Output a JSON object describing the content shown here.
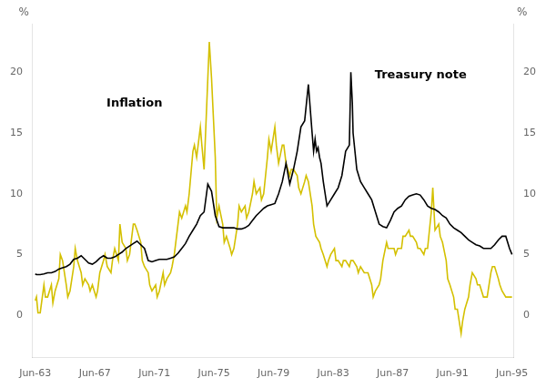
{
  "chart_data": {
    "type": "line",
    "ylabel": "%",
    "y2label": "%",
    "xlim": [
      1963.25,
      1995.5
    ],
    "xticks": [
      {
        "value": 1963.417,
        "label": "Jun-63"
      },
      {
        "value": 1967.417,
        "label": "Jun-67"
      },
      {
        "value": 1971.417,
        "label": "Jun-71"
      },
      {
        "value": 1975.417,
        "label": "Jun-75"
      },
      {
        "value": 1979.417,
        "label": "Jun-79"
      },
      {
        "value": 1983.417,
        "label": "Jun-83"
      },
      {
        "value": 1987.417,
        "label": "Jun-87"
      },
      {
        "value": 1991.417,
        "label": "Jun-91"
      },
      {
        "value": 1995.417,
        "label": "Jun-95"
      }
    ],
    "ylim": [
      -3.5,
      24
    ],
    "yticks": [
      0,
      5,
      10,
      15,
      20
    ],
    "y2lim": [
      -3.5,
      24
    ],
    "y2ticks": [
      0,
      5,
      10,
      15,
      20
    ],
    "grid": false,
    "annotations": [
      {
        "text": "Inflation",
        "x": 1968.2,
        "y": 17.2
      },
      {
        "text": "Treasury note",
        "x": 1986.2,
        "y": 19.5
      }
    ],
    "series": [
      {
        "color": "#d4c000",
        "x": [
          1963.417,
          1963.5,
          1963.6,
          1963.75,
          1964.0,
          1964.1,
          1964.2,
          1964.25,
          1964.5,
          1964.6,
          1964.75,
          1965.0,
          1965.1,
          1965.25,
          1965.5,
          1965.6,
          1965.75,
          1966.0,
          1966.1,
          1966.25,
          1966.5,
          1966.6,
          1966.75,
          1967.0,
          1967.1,
          1967.25,
          1967.5,
          1967.6,
          1967.75,
          1968.0,
          1968.1,
          1968.25,
          1968.5,
          1968.6,
          1968.75,
          1969.0,
          1969.1,
          1969.25,
          1969.5,
          1969.6,
          1969.75,
          1970.0,
          1970.1,
          1970.25,
          1970.5,
          1970.6,
          1970.75,
          1971.0,
          1971.1,
          1971.25,
          1971.5,
          1971.6,
          1971.75,
          1972.0,
          1972.1,
          1972.25,
          1972.5,
          1972.6,
          1972.75,
          1973.0,
          1973.1,
          1973.25,
          1973.5,
          1973.6,
          1973.75,
          1974.0,
          1974.1,
          1974.25,
          1974.5,
          1974.6,
          1974.75,
          1975.0,
          1975.1,
          1975.25,
          1975.5,
          1975.6,
          1975.75,
          1976.0,
          1976.1,
          1976.25,
          1976.5,
          1976.6,
          1976.75,
          1977.0,
          1977.1,
          1977.25,
          1977.5,
          1977.6,
          1977.75,
          1978.0,
          1978.1,
          1978.25,
          1978.5,
          1978.6,
          1978.75,
          1979.0,
          1979.1,
          1979.25,
          1979.5,
          1979.6,
          1979.75,
          1980.0,
          1980.1,
          1980.25,
          1980.5,
          1980.6,
          1980.75,
          1981.0,
          1981.1,
          1981.25,
          1981.5,
          1981.6,
          1981.75,
          1982.0,
          1982.1,
          1982.25,
          1982.5,
          1982.6,
          1982.75,
          1983.0,
          1983.1,
          1983.25,
          1983.5,
          1983.6,
          1983.75,
          1984.0,
          1984.1,
          1984.25,
          1984.5,
          1984.6,
          1984.75,
          1985.0,
          1985.1,
          1985.25,
          1985.5,
          1985.6,
          1985.75,
          1986.0,
          1986.1,
          1986.25,
          1986.5,
          1986.6,
          1986.75,
          1987.0,
          1987.1,
          1987.25,
          1987.5,
          1987.6,
          1987.75,
          1988.0,
          1988.1,
          1988.25,
          1988.5,
          1988.6,
          1988.75,
          1989.0,
          1989.1,
          1989.25,
          1989.5,
          1989.6,
          1989.75,
          1990.0,
          1990.1,
          1990.25,
          1990.5,
          1990.6,
          1990.75,
          1991.0,
          1991.1,
          1991.25,
          1991.5,
          1991.6,
          1991.75,
          1992.0,
          1992.1,
          1992.25,
          1992.5,
          1992.6,
          1992.75,
          1993.0,
          1993.1,
          1993.25,
          1993.5,
          1993.6,
          1993.75,
          1994.0,
          1994.1,
          1994.25,
          1994.5,
          1994.6,
          1994.75,
          1995.0,
          1995.25,
          1995.417
        ],
        "values": [
          1.2,
          1.5,
          0.2,
          0.2,
          2.5,
          1.5,
          1.5,
          1.5,
          2.5,
          1.0,
          2.0,
          3.0,
          5.0,
          4.5,
          2.5,
          1.5,
          2.0,
          4.0,
          5.5,
          4.5,
          3.5,
          2.5,
          3.0,
          2.5,
          2.0,
          2.5,
          1.5,
          2.0,
          3.5,
          4.5,
          5.0,
          4.0,
          3.5,
          4.5,
          5.5,
          4.5,
          7.5,
          6.0,
          5.5,
          4.5,
          5.0,
          7.5,
          7.5,
          7.0,
          6.0,
          4.5,
          4.0,
          3.5,
          2.5,
          2.0,
          2.5,
          1.5,
          2.0,
          3.5,
          2.5,
          3.0,
          3.5,
          4.0,
          5.0,
          7.5,
          8.5,
          8.0,
          9.0,
          8.5,
          10.0,
          13.5,
          14.0,
          13.0,
          15.5,
          14.0,
          12.0,
          19.5,
          22.5,
          19.5,
          13.0,
          8.0,
          9.0,
          7.5,
          6.0,
          6.5,
          5.5,
          5.0,
          5.5,
          7.5,
          9.0,
          8.5,
          9.0,
          8.0,
          8.5,
          10.0,
          11.0,
          10.0,
          10.5,
          9.5,
          10.0,
          13.0,
          14.5,
          13.5,
          15.5,
          14.0,
          12.5,
          14.0,
          14.0,
          12.5,
          11.5,
          12.0,
          12.0,
          11.5,
          10.5,
          10.0,
          11.0,
          11.5,
          11.0,
          9.0,
          7.5,
          6.5,
          6.0,
          5.5,
          5.0,
          4.0,
          4.5,
          5.0,
          5.5,
          4.5,
          4.5,
          4.0,
          4.5,
          4.5,
          4.0,
          4.5,
          4.5,
          4.0,
          3.5,
          4.0,
          3.5,
          3.5,
          3.5,
          2.5,
          1.5,
          2.0,
          2.5,
          3.0,
          4.5,
          6.0,
          5.5,
          5.5,
          5.5,
          5.0,
          5.5,
          5.5,
          6.5,
          6.5,
          7.0,
          6.5,
          6.5,
          6.0,
          5.5,
          5.5,
          5.0,
          5.5,
          5.5,
          8.5,
          10.5,
          7.0,
          7.5,
          6.5,
          6.0,
          4.5,
          3.0,
          2.5,
          1.5,
          0.5,
          0.5,
          -1.5,
          -0.5,
          0.5,
          1.5,
          2.5,
          3.5,
          3.0,
          2.5,
          2.5,
          1.5,
          1.5,
          1.5,
          3.5,
          4.0,
          4.0,
          3.0,
          2.5,
          2.0,
          1.5,
          1.5,
          1.5
        ]
      },
      {
        "color": "#000000",
        "x": [
          1963.417,
          1963.5,
          1963.75,
          1964.0,
          1964.25,
          1964.5,
          1964.75,
          1965.0,
          1965.25,
          1965.5,
          1965.75,
          1966.0,
          1966.25,
          1966.5,
          1966.75,
          1967.0,
          1967.25,
          1967.5,
          1967.75,
          1968.0,
          1968.25,
          1968.5,
          1968.75,
          1969.0,
          1969.25,
          1969.5,
          1969.75,
          1970.0,
          1970.25,
          1970.5,
          1970.75,
          1971.0,
          1971.25,
          1971.5,
          1971.75,
          1972.0,
          1972.25,
          1972.5,
          1972.75,
          1973.0,
          1973.25,
          1973.5,
          1973.75,
          1974.0,
          1974.25,
          1974.5,
          1974.75,
          1975.0,
          1975.25,
          1975.5,
          1975.75,
          1976.0,
          1976.25,
          1976.5,
          1976.75,
          1977.0,
          1977.25,
          1977.5,
          1977.75,
          1978.0,
          1978.25,
          1978.5,
          1978.75,
          1979.0,
          1979.25,
          1979.5,
          1979.75,
          1980.0,
          1980.25,
          1980.5,
          1980.75,
          1981.0,
          1981.25,
          1981.5,
          1981.75,
          1982.0,
          1982.1,
          1982.2,
          1982.3,
          1982.4,
          1982.5,
          1982.6,
          1982.75,
          1983.0,
          1983.25,
          1983.5,
          1983.75,
          1984.0,
          1984.25,
          1984.5,
          1984.6,
          1984.7,
          1984.75,
          1985.0,
          1985.25,
          1985.5,
          1985.75,
          1986.0,
          1986.25,
          1986.5,
          1986.75,
          1987.0,
          1987.25,
          1987.5,
          1987.75,
          1988.0,
          1988.25,
          1988.5,
          1988.75,
          1989.0,
          1989.25,
          1989.5,
          1989.75,
          1990.0,
          1990.25,
          1990.5,
          1990.75,
          1991.0,
          1991.25,
          1991.5,
          1991.75,
          1992.0,
          1992.25,
          1992.5,
          1992.75,
          1993.0,
          1993.25,
          1993.5,
          1993.75,
          1994.0,
          1994.25,
          1994.5,
          1994.75,
          1995.0,
          1995.25,
          1995.417
        ],
        "values": [
          3.4,
          3.35,
          3.35,
          3.4,
          3.5,
          3.5,
          3.6,
          3.8,
          3.9,
          4.0,
          4.2,
          4.6,
          4.7,
          4.9,
          4.6,
          4.3,
          4.2,
          4.4,
          4.7,
          4.9,
          4.7,
          4.7,
          4.8,
          5.0,
          5.2,
          5.5,
          5.7,
          5.9,
          6.1,
          5.8,
          5.5,
          4.5,
          4.4,
          4.5,
          4.6,
          4.6,
          4.6,
          4.7,
          4.8,
          5.1,
          5.5,
          5.9,
          6.5,
          7.0,
          7.5,
          8.2,
          8.5,
          10.8,
          10.2,
          8.2,
          7.3,
          7.2,
          7.2,
          7.2,
          7.2,
          7.1,
          7.1,
          7.2,
          7.4,
          7.8,
          8.2,
          8.5,
          8.8,
          9.0,
          9.1,
          9.2,
          10.0,
          11.0,
          12.5,
          10.8,
          12.0,
          13.5,
          15.5,
          16.0,
          19.0,
          15.0,
          13.5,
          14.5,
          13.5,
          13.8,
          13.0,
          12.5,
          11.0,
          9.0,
          9.5,
          10.0,
          10.5,
          11.5,
          13.5,
          14.0,
          20.0,
          17.5,
          15.0,
          12.0,
          11.0,
          10.5,
          10.0,
          9.5,
          8.5,
          7.5,
          7.3,
          7.2,
          7.8,
          8.5,
          8.8,
          9.0,
          9.5,
          9.8,
          9.9,
          10.0,
          9.9,
          9.5,
          9.0,
          8.8,
          8.7,
          8.5,
          8.2,
          8.0,
          7.5,
          7.2,
          7.0,
          6.8,
          6.5,
          6.2,
          6.0,
          5.8,
          5.7,
          5.5,
          5.5,
          5.5,
          5.8,
          6.2,
          6.5,
          6.5,
          5.5,
          5.0
        ]
      }
    ]
  }
}
